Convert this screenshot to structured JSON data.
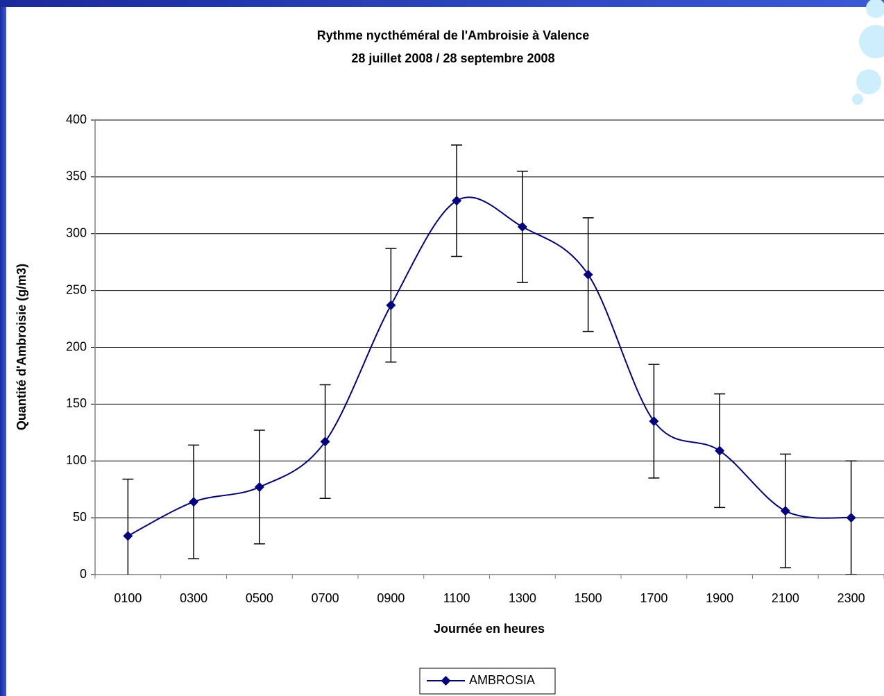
{
  "chart_data": {
    "type": "line",
    "title": "Rythme nycthéméral de l'Ambroisie à Valence",
    "subtitle": "28 juillet 2008 / 28 septembre 2008",
    "y_label": "Quantité d'Ambroisie (g/m3)",
    "x_label": "Journée en heures",
    "categories": [
      "0100",
      "0300",
      "0500",
      "0700",
      "0900",
      "1100",
      "1300",
      "1500",
      "1700",
      "1900",
      "2100",
      "2300"
    ],
    "series": [
      {
        "name": "AMBROSIA",
        "color": "#000080",
        "values": [
          34,
          64,
          77,
          117,
          237,
          329,
          306,
          264,
          135,
          109,
          56,
          50
        ],
        "errors": [
          50,
          50,
          50,
          50,
          50,
          49,
          49,
          50,
          50,
          50,
          50,
          50
        ]
      }
    ],
    "ylim": [
      0,
      400
    ],
    "yticks": [
      0,
      50,
      100,
      150,
      200,
      250,
      300,
      350,
      400
    ],
    "grid": true,
    "legend": "bottom"
  }
}
